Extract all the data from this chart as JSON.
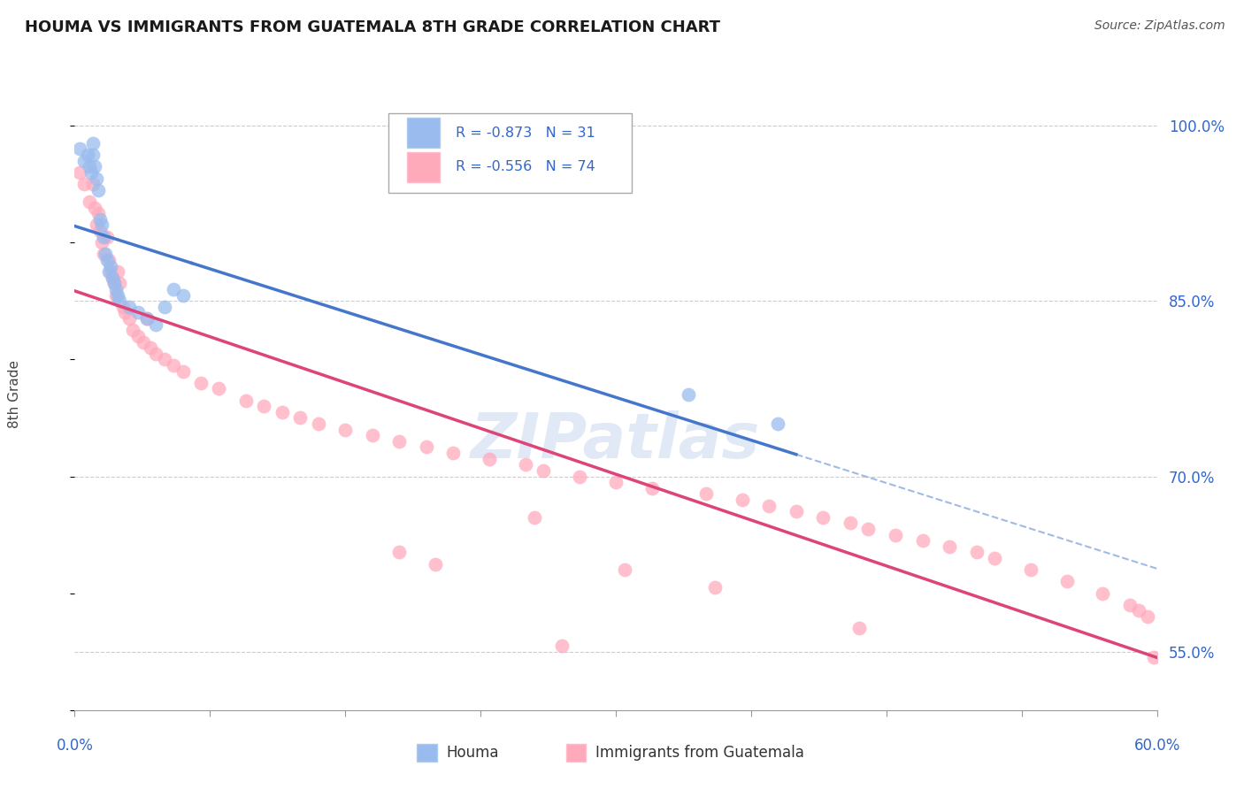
{
  "title": "HOUMA VS IMMIGRANTS FROM GUATEMALA 8TH GRADE CORRELATION CHART",
  "source_text": "Source: ZipAtlas.com",
  "ylabel": "8th Grade",
  "xlim": [
    0.0,
    60.0
  ],
  "ylim": [
    50.0,
    104.0
  ],
  "yticks": [
    55.0,
    70.0,
    85.0,
    100.0
  ],
  "ytick_labels": [
    "55.0%",
    "70.0%",
    "85.0%",
    "100.0%"
  ],
  "legend_r1": "R = -0.873",
  "legend_n1": "N = 31",
  "legend_r2": "R = -0.556",
  "legend_n2": "N = 74",
  "legend_label1": "Houma",
  "legend_label2": "Immigrants from Guatemala",
  "color_blue_fill": "#99BBEE",
  "color_pink_fill": "#FFAABB",
  "color_blue_line": "#4477CC",
  "color_pink_line": "#DD4477",
  "color_blue_text": "#3366CC",
  "color_grid": "#cccccc",
  "watermark_text": "ZIPatlas",
  "watermark_color": "#c8d8ee",
  "blue_x": [
    0.3,
    0.5,
    0.7,
    0.8,
    0.9,
    1.0,
    1.0,
    1.1,
    1.2,
    1.3,
    1.4,
    1.5,
    1.6,
    1.7,
    1.8,
    1.9,
    2.0,
    2.1,
    2.2,
    2.3,
    2.4,
    2.5,
    3.0,
    3.5,
    4.0,
    4.5,
    5.0,
    5.5,
    6.0,
    34.0,
    39.0
  ],
  "blue_y": [
    98.0,
    97.0,
    97.5,
    96.5,
    96.0,
    98.5,
    97.5,
    96.5,
    95.5,
    94.5,
    92.0,
    91.5,
    90.5,
    89.0,
    88.5,
    87.5,
    88.0,
    87.0,
    86.5,
    86.0,
    85.5,
    85.0,
    84.5,
    84.0,
    83.5,
    83.0,
    84.5,
    86.0,
    85.5,
    77.0,
    74.5
  ],
  "pink_x": [
    0.3,
    0.5,
    0.8,
    1.0,
    1.1,
    1.2,
    1.3,
    1.4,
    1.5,
    1.6,
    1.8,
    1.9,
    2.0,
    2.1,
    2.2,
    2.3,
    2.4,
    2.5,
    2.7,
    2.8,
    3.0,
    3.2,
    3.5,
    3.8,
    4.0,
    4.2,
    4.5,
    5.0,
    5.5,
    6.0,
    7.0,
    8.0,
    9.5,
    10.5,
    11.5,
    12.5,
    13.5,
    15.0,
    16.5,
    18.0,
    19.5,
    21.0,
    23.0,
    25.0,
    26.0,
    28.0,
    30.0,
    32.0,
    35.0,
    37.0,
    38.5,
    40.0,
    41.5,
    43.0,
    44.0,
    45.5,
    47.0,
    48.5,
    50.0,
    51.0,
    53.0,
    55.0,
    57.0,
    58.5,
    59.0,
    59.5,
    18.0,
    20.0,
    25.5,
    30.5,
    35.5,
    43.5,
    59.8,
    27.0
  ],
  "pink_y": [
    96.0,
    95.0,
    93.5,
    95.0,
    93.0,
    91.5,
    92.5,
    91.0,
    90.0,
    89.0,
    90.5,
    88.5,
    87.5,
    87.0,
    86.5,
    85.5,
    87.5,
    86.5,
    84.5,
    84.0,
    83.5,
    82.5,
    82.0,
    81.5,
    83.5,
    81.0,
    80.5,
    80.0,
    79.5,
    79.0,
    78.0,
    77.5,
    76.5,
    76.0,
    75.5,
    75.0,
    74.5,
    74.0,
    73.5,
    73.0,
    72.5,
    72.0,
    71.5,
    71.0,
    70.5,
    70.0,
    69.5,
    69.0,
    68.5,
    68.0,
    67.5,
    67.0,
    66.5,
    66.0,
    65.5,
    65.0,
    64.5,
    64.0,
    63.5,
    63.0,
    62.0,
    61.0,
    60.0,
    59.0,
    58.5,
    58.0,
    63.5,
    62.5,
    66.5,
    62.0,
    60.5,
    57.0,
    54.5,
    55.5
  ]
}
